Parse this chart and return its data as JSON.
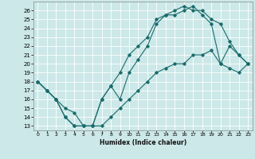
{
  "title": "",
  "xlabel": "Humidex (Indice chaleur)",
  "bg_color": "#cce8e8",
  "grid_color": "#ffffff",
  "line_color": "#1a6b6b",
  "xlim": [
    -0.5,
    23.5
  ],
  "ylim": [
    12.5,
    27.0
  ],
  "xticks": [
    0,
    1,
    2,
    3,
    4,
    5,
    6,
    7,
    8,
    9,
    10,
    11,
    12,
    13,
    14,
    15,
    16,
    17,
    18,
    19,
    20,
    21,
    22,
    23
  ],
  "yticks": [
    13,
    14,
    15,
    16,
    17,
    18,
    19,
    20,
    21,
    22,
    23,
    24,
    25,
    26
  ],
  "line1_x": [
    0,
    1,
    2,
    3,
    4,
    5,
    6,
    7,
    8,
    9,
    10,
    11,
    12,
    13,
    14,
    15,
    16,
    17,
    18,
    19,
    20,
    21,
    22,
    23
  ],
  "line1_y": [
    18,
    17,
    16,
    14,
    13,
    13,
    13,
    16,
    17.5,
    16,
    19,
    20.5,
    22,
    24.5,
    25.5,
    25.5,
    26,
    26.5,
    25.5,
    24.5,
    20,
    22,
    21,
    20
  ],
  "line2_x": [
    0,
    1,
    2,
    3,
    4,
    5,
    6,
    7,
    8,
    9,
    10,
    11,
    12,
    13,
    14,
    15,
    16,
    17,
    18,
    19,
    20,
    21,
    22,
    23
  ],
  "line2_y": [
    18,
    17,
    16,
    14,
    13,
    13,
    13,
    16,
    17.5,
    19,
    21,
    22,
    23,
    25,
    25.5,
    26,
    26.5,
    26,
    26,
    25,
    24.5,
    22.5,
    21,
    20
  ],
  "line3_x": [
    0,
    1,
    2,
    3,
    4,
    5,
    6,
    7,
    8,
    9,
    10,
    11,
    12,
    13,
    14,
    15,
    16,
    17,
    18,
    19,
    20,
    21,
    22,
    23
  ],
  "line3_y": [
    18,
    17,
    16,
    15,
    14.5,
    13,
    13,
    13,
    14,
    15,
    16,
    17,
    18,
    19,
    19.5,
    20,
    20,
    21,
    21,
    21.5,
    20,
    19.5,
    19,
    20
  ]
}
